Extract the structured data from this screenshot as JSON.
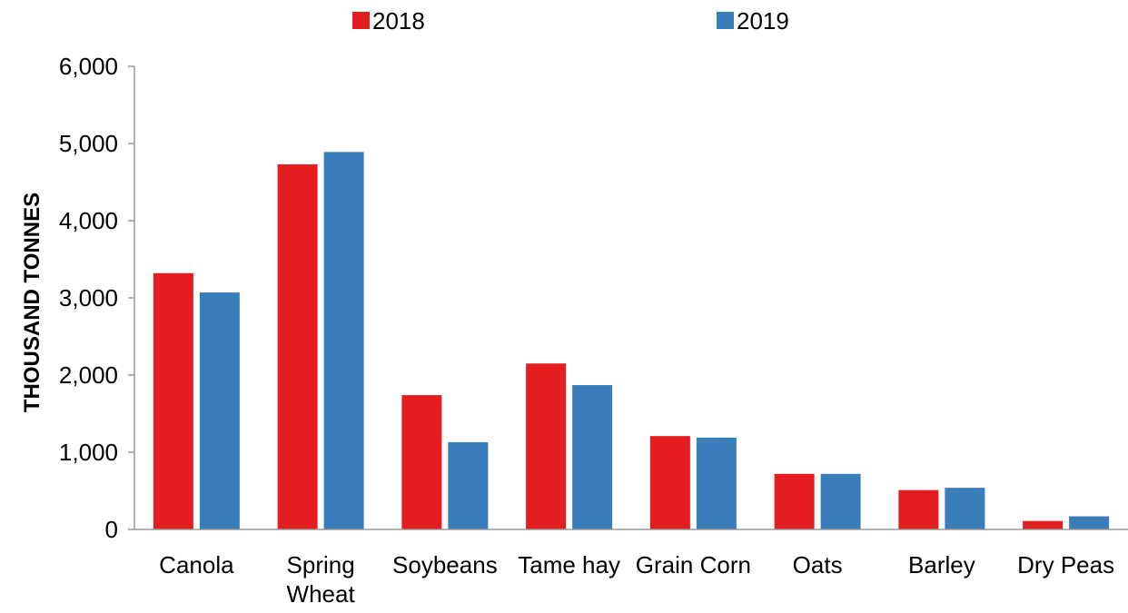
{
  "chart_data": {
    "type": "bar",
    "title": "",
    "xlabel": "",
    "ylabel": "THOUSAND TONNES",
    "ylim": [
      0,
      6000
    ],
    "yticks": [
      0,
      1000,
      2000,
      3000,
      4000,
      5000,
      6000
    ],
    "ytick_labels": [
      "0",
      "1,000",
      "2,000",
      "3,000",
      "4,000",
      "5,000",
      "6,000"
    ],
    "grid": false,
    "legend_position": "top-center",
    "categories": [
      [
        "Canola"
      ],
      [
        "Spring",
        "Wheat"
      ],
      [
        "Soybeans"
      ],
      [
        "Tame hay"
      ],
      [
        "Grain Corn"
      ],
      [
        "Oats"
      ],
      [
        "Barley"
      ],
      [
        "Dry Peas"
      ]
    ],
    "series": [
      {
        "name": "2018",
        "color": "#e41e20",
        "values": [
          3320,
          4730,
          1740,
          2150,
          1210,
          720,
          510,
          110
        ]
      },
      {
        "name": "2019",
        "color": "#3a7dbb",
        "values": [
          3070,
          4890,
          1130,
          1870,
          1190,
          720,
          540,
          170
        ]
      }
    ]
  }
}
